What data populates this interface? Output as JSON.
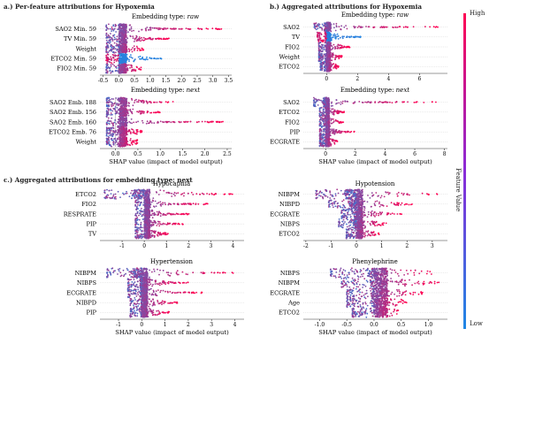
{
  "section_titles": {
    "a": "a.) Per-feature attributions for Hypoxemia",
    "b": "b.) Aggregated attributions for Hypoxemia",
    "c": "c.) Aggregated attributions for embedding type: next"
  },
  "colorbar": {
    "high": "High",
    "low": "Low",
    "label": "Feature Value",
    "color_low": "#1e88e5",
    "color_high": "#ff0052"
  },
  "chart_data": [
    {
      "type": "scatter",
      "subtype": "beeswarm",
      "title_prefix": "Embedding type: ",
      "title_emph": "raw",
      "features": [
        "SAO2 Min. 59",
        "TV Min. 59",
        "Weight",
        "ETCO2 Min. 59",
        "FIO2 Min. 59"
      ],
      "ranges": [
        [
          -0.4,
          3.4
        ],
        [
          -0.4,
          1.6
        ],
        [
          -0.4,
          0.8
        ],
        [
          -0.4,
          1.4
        ],
        [
          -0.4,
          0.8
        ]
      ],
      "xticks": [
        "-0.5",
        "0.0",
        "0.5",
        "1.0",
        "1.5",
        "2.0",
        "2.5",
        "3.0",
        "3.5"
      ],
      "xlim": [
        -0.6,
        3.6
      ],
      "xlabel": ""
    },
    {
      "type": "scatter",
      "subtype": "beeswarm",
      "title_prefix": "Embedding type: ",
      "title_emph": "next",
      "features": [
        "SAO2 Emb. 188",
        "SAO2 Emb. 156",
        "SAO2 Emb. 160",
        "ETCO2 Emb. 76",
        "Weight"
      ],
      "ranges": [
        [
          -0.2,
          1.3
        ],
        [
          -0.2,
          1.0
        ],
        [
          -0.2,
          2.5
        ],
        [
          -0.2,
          0.6
        ],
        [
          -0.2,
          0.5
        ]
      ],
      "xticks": [
        "0.0",
        "0.5",
        "1.0",
        "1.5",
        "2.0",
        "2.5"
      ],
      "xlim": [
        -0.35,
        2.6
      ],
      "xlabel": "SHAP value (impact of model output)"
    },
    {
      "type": "scatter",
      "subtype": "beeswarm",
      "title_prefix": "Embedding type: ",
      "title_emph": "raw",
      "features": [
        "SAO2",
        "TV",
        "FIO2",
        "Weight",
        "ETCO2"
      ],
      "ranges": [
        [
          -0.8,
          7.2
        ],
        [
          -0.6,
          2.2
        ],
        [
          -0.5,
          1.5
        ],
        [
          -0.5,
          1.0
        ],
        [
          -0.4,
          0.8
        ]
      ],
      "xticks": [
        "0",
        "2",
        "4",
        "6"
      ],
      "xlim": [
        -1.5,
        7.8
      ],
      "xlabel": ""
    },
    {
      "type": "scatter",
      "subtype": "beeswarm",
      "title_prefix": "Embedding type: ",
      "title_emph": "next",
      "features": [
        "SAO2",
        "ETCO2",
        "FIO2",
        "PIP",
        "ECGRATE"
      ],
      "ranges": [
        [
          -0.8,
          7.6
        ],
        [
          -0.4,
          1.3
        ],
        [
          -0.4,
          1.2
        ],
        [
          -0.4,
          2.0
        ],
        [
          -0.4,
          0.8
        ]
      ],
      "xticks": [
        "0",
        "2",
        "4",
        "6",
        "8"
      ],
      "xlim": [
        -1.5,
        8.2
      ],
      "xlabel": "SHAP value (impact of model output)"
    },
    {
      "type": "scatter",
      "subtype": "beeswarm",
      "title": "Hypocapnia",
      "features": [
        "ETCO2",
        "FIO2",
        "RESPRATE",
        "PIP",
        "TV"
      ],
      "ranges": [
        [
          -1.8,
          4.0
        ],
        [
          -0.4,
          3.0
        ],
        [
          -0.4,
          2.1
        ],
        [
          -0.4,
          1.8
        ],
        [
          -0.4,
          1.1
        ]
      ],
      "xticks": [
        "-1",
        "0",
        "1",
        "2",
        "3",
        "4"
      ],
      "xlim": [
        -2.0,
        4.5
      ],
      "xlabel": ""
    },
    {
      "type": "scatter",
      "subtype": "beeswarm",
      "title": "Hypotension",
      "features": [
        "NIBPM",
        "NIBPD",
        "ECGRATE",
        "NIBPS",
        "ETCO2"
      ],
      "ranges": [
        [
          -1.6,
          3.2
        ],
        [
          -1.1,
          2.2
        ],
        [
          -0.6,
          1.8
        ],
        [
          -0.7,
          1.2
        ],
        [
          -0.4,
          0.9
        ]
      ],
      "xticks": [
        "-2",
        "-1",
        "0",
        "1",
        "2",
        "3"
      ],
      "xlim": [
        -2.1,
        3.6
      ],
      "xlabel": ""
    },
    {
      "type": "scatter",
      "subtype": "beeswarm",
      "title": "Hypertension",
      "features": [
        "NIBPM",
        "NIBPS",
        "ECGRATE",
        "NIBPD",
        "PIP"
      ],
      "ranges": [
        [
          -1.5,
          4.0
        ],
        [
          -0.6,
          2.0
        ],
        [
          -0.6,
          2.6
        ],
        [
          -0.5,
          1.6
        ],
        [
          -0.5,
          1.2
        ]
      ],
      "xticks": [
        "-1",
        "0",
        "1",
        "2",
        "3",
        "4"
      ],
      "xlim": [
        -1.8,
        4.4
      ],
      "xlabel": "SHAP value (impact of model output)"
    },
    {
      "type": "scatter",
      "subtype": "beeswarm",
      "title": "Phenylephrine",
      "features": [
        "NIBPS",
        "NIBPM",
        "ECGRATE",
        "Age",
        "ETCO2"
      ],
      "ranges": [
        [
          -0.8,
          1.1
        ],
        [
          -0.6,
          1.2
        ],
        [
          -0.5,
          0.9
        ],
        [
          -0.5,
          0.6
        ],
        [
          -0.4,
          0.5
        ]
      ],
      "xticks": [
        "-1.0",
        "-0.5",
        "0.0",
        "0.5",
        "1.0"
      ],
      "xlim": [
        -1.3,
        1.35
      ],
      "xlabel": "SHAP value (impact of model output)"
    }
  ]
}
